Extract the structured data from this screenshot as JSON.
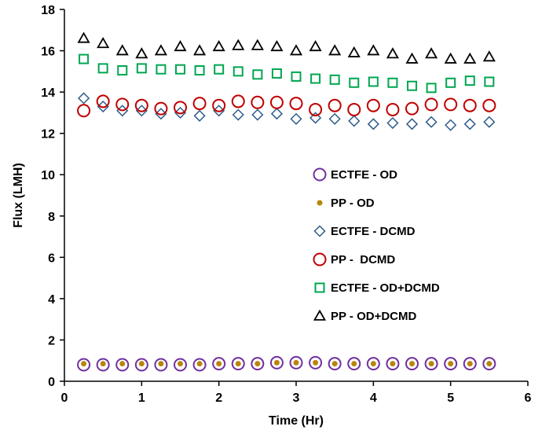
{
  "chart_data": {
    "type": "scatter",
    "title": "",
    "xlabel": "Time (Hr)",
    "ylabel": "Flux (LMH)",
    "xlim": [
      0,
      6
    ],
    "ylim": [
      0,
      18
    ],
    "xticks": [
      "0",
      "1",
      "2",
      "3",
      "4",
      "5",
      "6"
    ],
    "yticks": [
      "0",
      "2",
      "4",
      "6",
      "8",
      "10",
      "12",
      "14",
      "16",
      "18"
    ],
    "grid": false,
    "legend_position": "lower-right",
    "x": [
      0.25,
      0.5,
      0.75,
      1.0,
      1.25,
      1.5,
      1.75,
      2.0,
      2.25,
      2.5,
      2.75,
      3.0,
      3.25,
      3.5,
      3.75,
      4.0,
      4.25,
      4.5,
      4.75,
      5.0,
      5.25,
      5.5
    ],
    "series": [
      {
        "name": "ECTFE - OD",
        "marker": "circle-open",
        "color": "#7030A0",
        "values": [
          0.8,
          0.8,
          0.8,
          0.8,
          0.8,
          0.8,
          0.8,
          0.85,
          0.85,
          0.85,
          0.9,
          0.9,
          0.9,
          0.85,
          0.85,
          0.85,
          0.85,
          0.85,
          0.85,
          0.85,
          0.85,
          0.85
        ]
      },
      {
        "name": "PP - OD",
        "marker": "dot",
        "color": "#B8860B",
        "values": [
          0.85,
          0.85,
          0.85,
          0.85,
          0.85,
          0.85,
          0.85,
          0.85,
          0.85,
          0.85,
          0.9,
          0.9,
          0.9,
          0.85,
          0.85,
          0.85,
          0.85,
          0.85,
          0.85,
          0.85,
          0.85,
          0.85
        ]
      },
      {
        "name": "ECTFE - DCMD",
        "marker": "diamond-open",
        "color": "#2E5C8A",
        "values": [
          13.7,
          13.3,
          13.1,
          13.1,
          12.95,
          13.0,
          12.85,
          13.1,
          12.9,
          12.9,
          12.95,
          12.7,
          12.75,
          12.7,
          12.6,
          12.45,
          12.5,
          12.45,
          12.55,
          12.4,
          12.45,
          12.55
        ]
      },
      {
        "name": "PP -  DCMD",
        "marker": "circle-open",
        "color": "#C00000",
        "values": [
          13.1,
          13.55,
          13.4,
          13.35,
          13.2,
          13.25,
          13.45,
          13.35,
          13.55,
          13.5,
          13.5,
          13.45,
          13.15,
          13.35,
          13.15,
          13.35,
          13.15,
          13.2,
          13.4,
          13.4,
          13.35,
          13.35
        ]
      },
      {
        "name": "ECTFE - OD+DCMD",
        "marker": "square-open",
        "color": "#00A651",
        "values": [
          15.6,
          15.15,
          15.05,
          15.15,
          15.1,
          15.1,
          15.05,
          15.1,
          15.0,
          14.85,
          14.9,
          14.75,
          14.65,
          14.6,
          14.45,
          14.5,
          14.45,
          14.3,
          14.2,
          14.45,
          14.55,
          14.5
        ]
      },
      {
        "name": "PP - OD+DCMD",
        "marker": "triangle-open",
        "color": "#000000",
        "values": [
          16.6,
          16.35,
          16.0,
          15.85,
          16.0,
          16.2,
          16.0,
          16.2,
          16.25,
          16.25,
          16.2,
          16.0,
          16.2,
          16.0,
          15.9,
          16.0,
          15.85,
          15.6,
          15.85,
          15.6,
          15.6,
          15.7
        ]
      }
    ]
  }
}
